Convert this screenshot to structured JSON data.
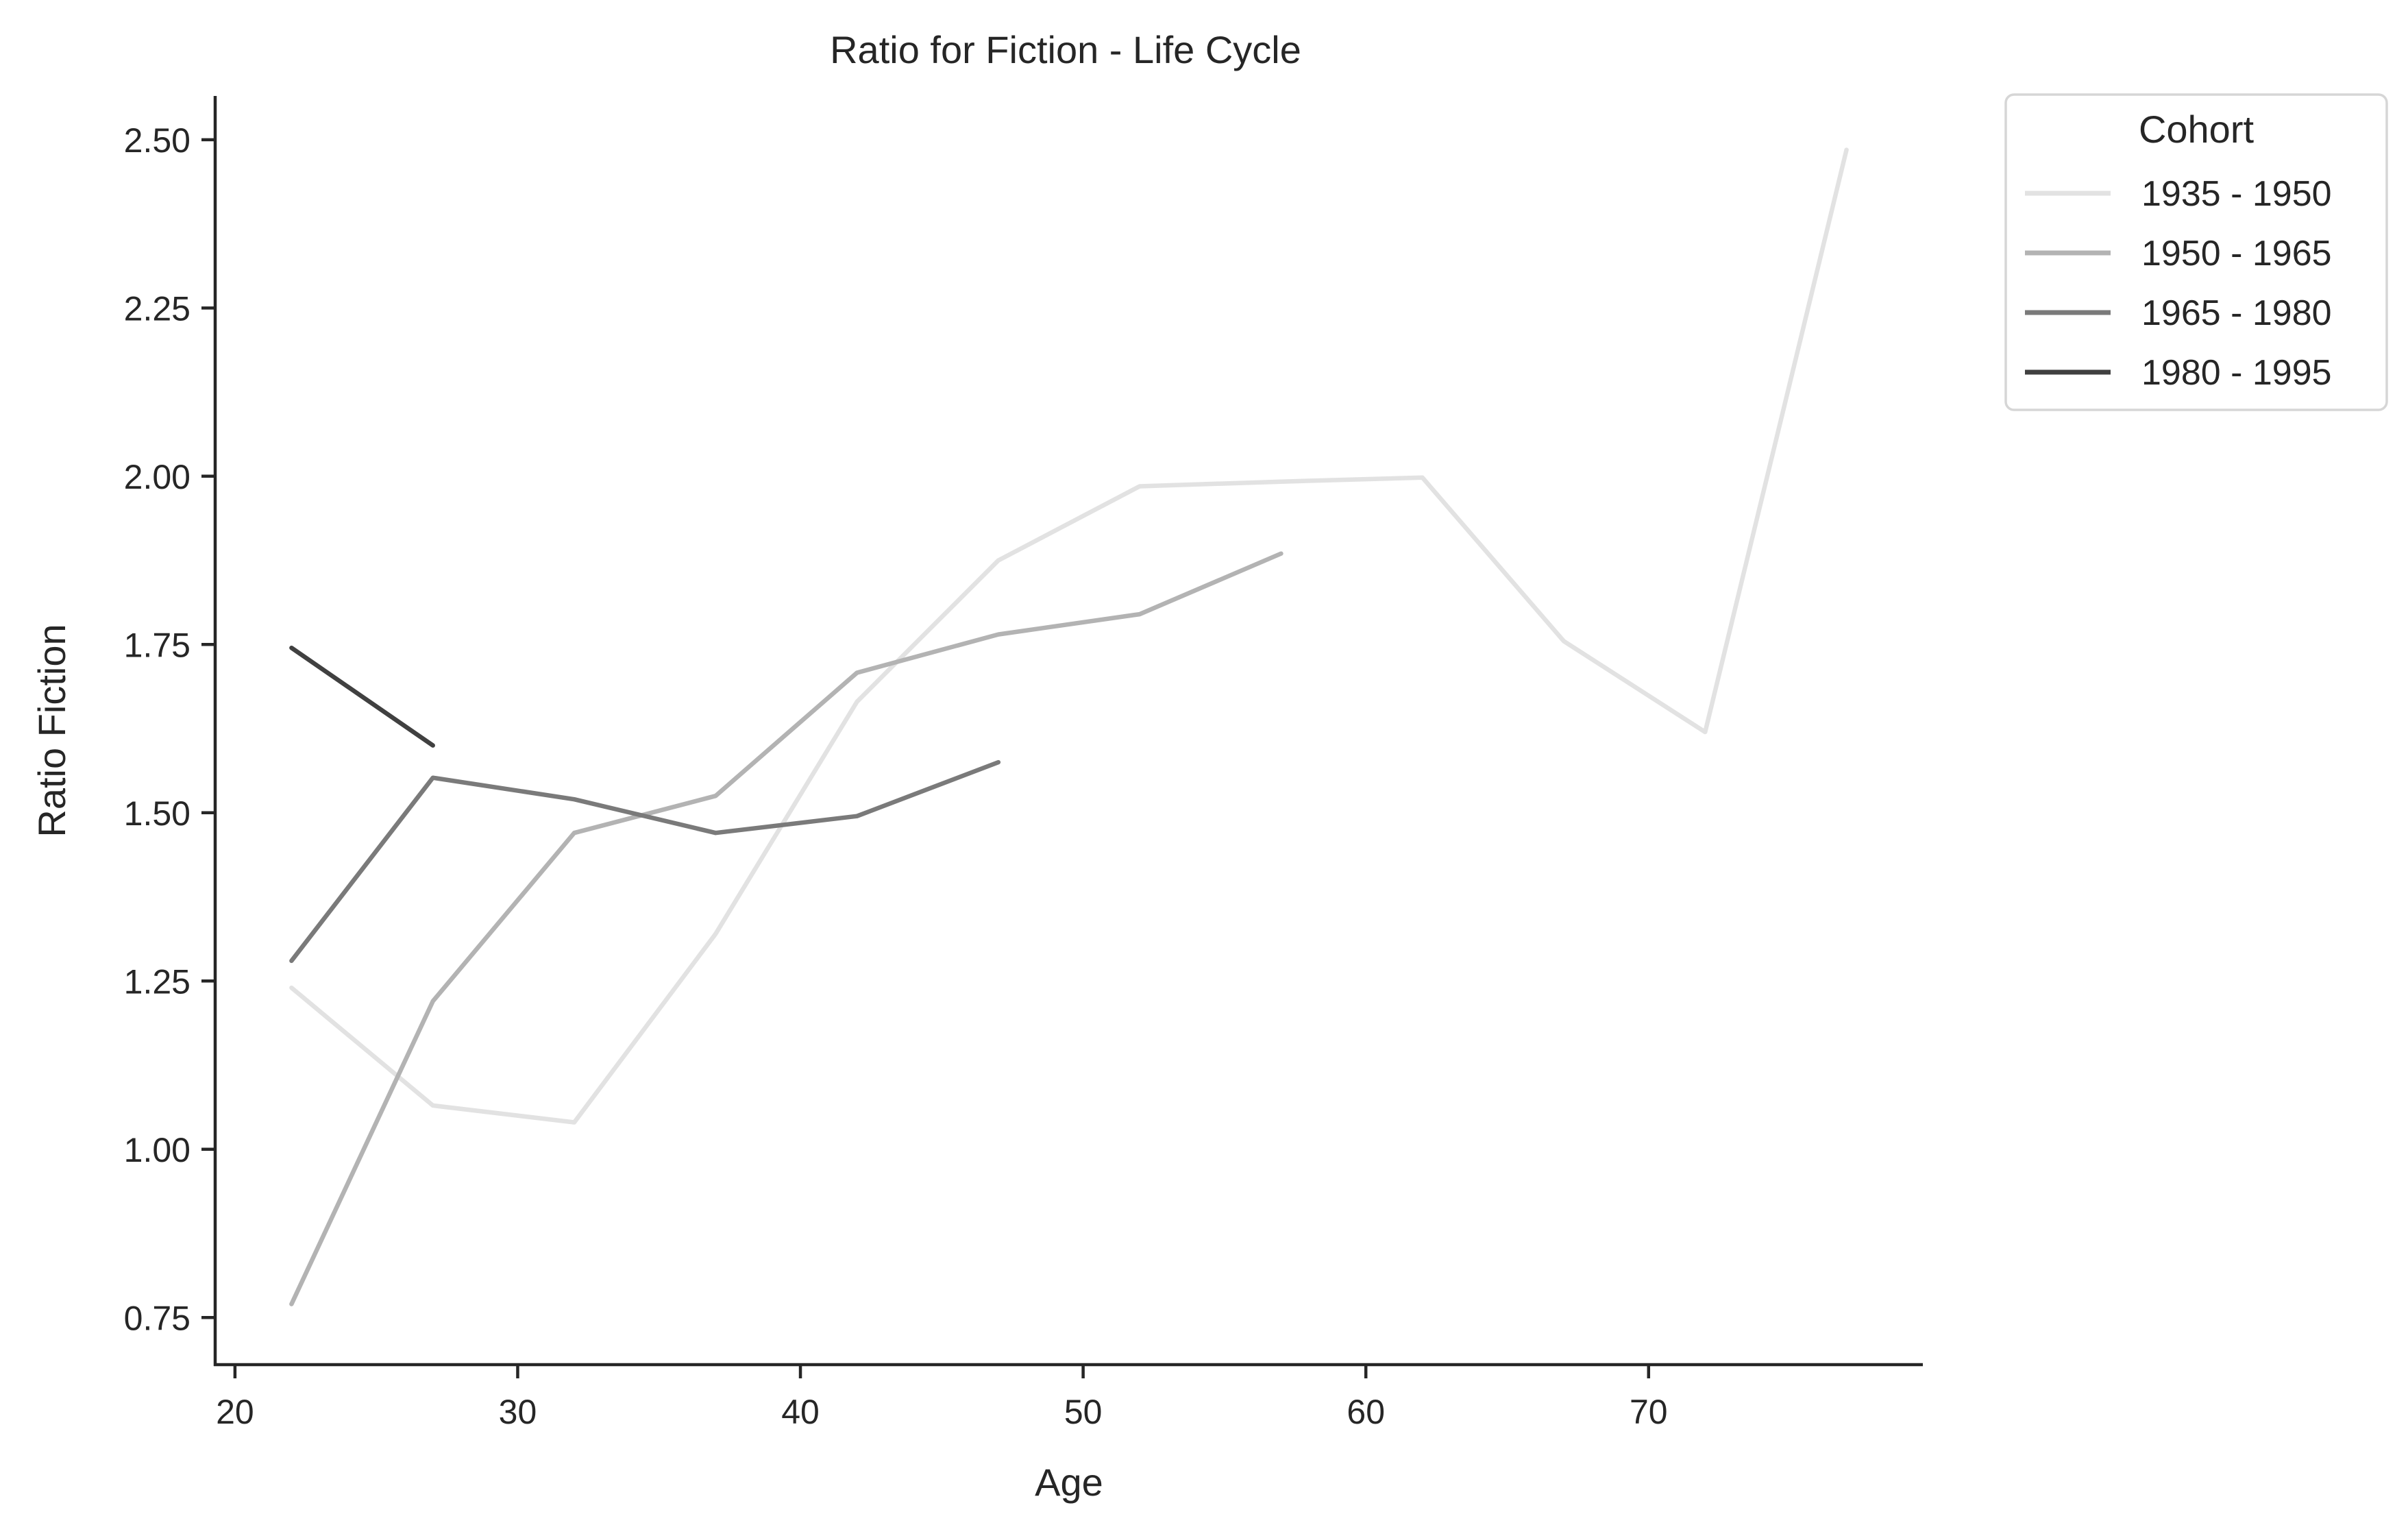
{
  "chart_data": {
    "type": "line",
    "title": "Ratio for Fiction - Life Cycle",
    "xlabel": "Age",
    "ylabel": "Ratio Fiction",
    "xlim": [
      19.3,
      79.7
    ],
    "ylim": [
      0.68,
      2.565
    ],
    "xticks": [
      20,
      30,
      40,
      50,
      60,
      70
    ],
    "yticks": [
      0.75,
      1.0,
      1.25,
      1.5,
      1.75,
      2.0,
      2.25,
      2.5
    ],
    "xtick_labels": [
      "20",
      "30",
      "40",
      "50",
      "60",
      "70"
    ],
    "ytick_labels": [
      "0.75",
      "1.00",
      "1.25",
      "1.50",
      "1.75",
      "2.00",
      "2.25",
      "2.50"
    ],
    "grid": false,
    "legend": {
      "title": "Cohort",
      "position": "outside-top-right"
    },
    "series": [
      {
        "name": "1935 - 1950",
        "color": "#e2e2e2",
        "x": [
          22,
          27,
          32,
          37,
          42,
          47,
          52,
          57,
          62,
          67,
          72,
          77
        ],
        "y": [
          1.24,
          1.065,
          1.04,
          1.32,
          1.665,
          1.875,
          1.985,
          1.992,
          1.998,
          1.755,
          1.62,
          2.485
        ]
      },
      {
        "name": "1950 - 1965",
        "color": "#b3b3b3",
        "x": [
          22,
          27,
          32,
          37,
          42,
          47,
          52,
          57
        ],
        "y": [
          0.77,
          1.22,
          1.47,
          1.525,
          1.708,
          1.765,
          1.795,
          1.885
        ]
      },
      {
        "name": "1965 - 1980",
        "color": "#7a7a7a",
        "x": [
          22,
          27,
          32,
          37,
          42,
          47
        ],
        "y": [
          1.28,
          1.552,
          1.52,
          1.47,
          1.495,
          1.575
        ]
      },
      {
        "name": "1980 - 1995",
        "color": "#404040",
        "x": [
          22,
          27
        ],
        "y": [
          1.745,
          1.6
        ]
      }
    ]
  }
}
